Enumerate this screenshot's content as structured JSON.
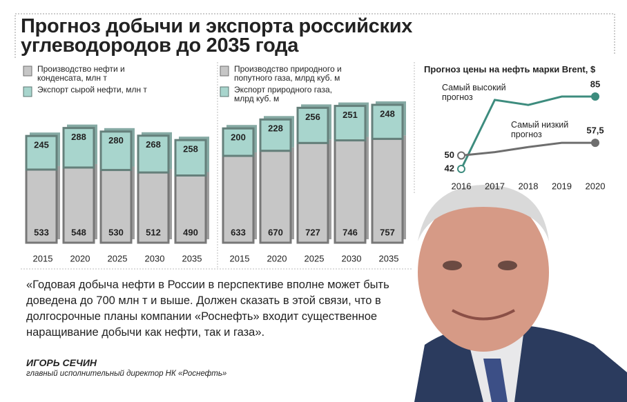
{
  "title": "Прогноз добычи и экспорта российских углеводородов до 2035 года",
  "chart_data": [
    {
      "type": "bar",
      "stacked": true,
      "categories": [
        "2015",
        "2020",
        "2025",
        "2030",
        "2035"
      ],
      "series": [
        {
          "name": "Производство нефти и конденсата, млн т",
          "color": "#c6c6c6",
          "values": [
            533,
            548,
            530,
            512,
            490
          ]
        },
        {
          "name": "Экспорт сырой нефти, млн т",
          "color": "#a8d5cd",
          "values": [
            245,
            288,
            280,
            268,
            258
          ]
        }
      ]
    },
    {
      "type": "bar",
      "stacked": true,
      "categories": [
        "2015",
        "2020",
        "2025",
        "2030",
        "2035"
      ],
      "series": [
        {
          "name": "Производство природного и попутного газа, млрд куб. м",
          "color": "#c6c6c6",
          "values": [
            633,
            670,
            727,
            746,
            757
          ]
        },
        {
          "name": "Экспорт природного газа, млрд куб. м",
          "color": "#a8d5cd",
          "values": [
            200,
            228,
            256,
            251,
            248
          ]
        }
      ]
    },
    {
      "type": "line",
      "title": "Прогноз цены на нефть марки Brent, $",
      "x": [
        "2016",
        "2017",
        "2018",
        "2019",
        "2020"
      ],
      "series": [
        {
          "name": "Самый высокий прогноз",
          "color": "#3d8c7e",
          "values": [
            42,
            83,
            80,
            85,
            85
          ]
        },
        {
          "name": "Самый низкий прогноз",
          "color": "#6e6e6e",
          "values": [
            50,
            52,
            55,
            57.5,
            57.5
          ],
          "value_labels": [
            null,
            null,
            null,
            null,
            "57,5"
          ]
        }
      ]
    }
  ],
  "quote": "«Годовая добыча нефти в России в перспективе вполне может быть доведена до 700 млн т и выше. Должен сказать в этой связи, что в долгосрочные планы компании «Роснефть» входит существенное наращивание добычи как нефти, так и газа».",
  "author": {
    "name": "ИГОРЬ СЕЧИН",
    "role": "главный исполнительный директор НК «Роснефть»"
  }
}
